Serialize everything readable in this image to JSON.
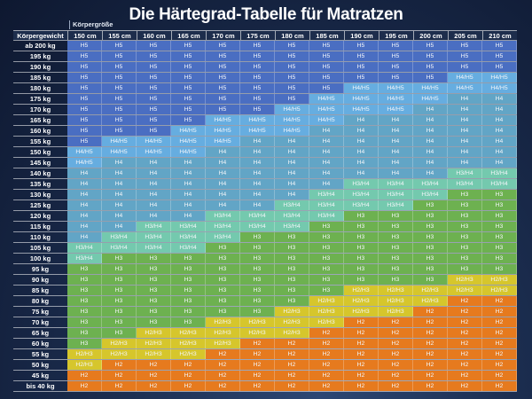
{
  "title": "Die Härtegrad-Tabelle für Matratzen",
  "chart_data": {
    "type": "table",
    "column_axis_label": "Körpergröße",
    "row_axis_label": "Körpergewicht",
    "columns": [
      "150 cm",
      "155 cm",
      "160 cm",
      "165 cm",
      "170 cm",
      "175 cm",
      "180 cm",
      "185 cm",
      "190 cm",
      "195 cm",
      "200 cm",
      "205 cm",
      "210 cm"
    ],
    "rows": [
      {
        "label": "ab 200 kg",
        "values": [
          "H5",
          "H5",
          "H5",
          "H5",
          "H5",
          "H5",
          "H5",
          "H5",
          "H5",
          "H5",
          "H5",
          "H5",
          "H5"
        ]
      },
      {
        "label": "195 kg",
        "values": [
          "H5",
          "H5",
          "H5",
          "H5",
          "H5",
          "H5",
          "H5",
          "H5",
          "H5",
          "H5",
          "H5",
          "H5",
          "H5"
        ]
      },
      {
        "label": "190 kg",
        "values": [
          "H5",
          "H5",
          "H5",
          "H5",
          "H5",
          "H5",
          "H5",
          "H5",
          "H5",
          "H5",
          "H5",
          "H5",
          "H5"
        ]
      },
      {
        "label": "185 kg",
        "values": [
          "H5",
          "H5",
          "H5",
          "H5",
          "H5",
          "H5",
          "H5",
          "H5",
          "H5",
          "H5",
          "H5",
          "H4/H5",
          "H4/H5"
        ]
      },
      {
        "label": "180 kg",
        "values": [
          "H5",
          "H5",
          "H5",
          "H5",
          "H5",
          "H5",
          "H5",
          "H5",
          "H4/H5",
          "H4/H5",
          "H4/H5",
          "H4/H5",
          "H4/H5"
        ]
      },
      {
        "label": "175 kg",
        "values": [
          "H5",
          "H5",
          "H5",
          "H5",
          "H5",
          "H5",
          "H5",
          "H4/H5",
          "H4/H5",
          "H4/H5",
          "H4/H5",
          "H4",
          "H4"
        ]
      },
      {
        "label": "170 kg",
        "values": [
          "H5",
          "H5",
          "H5",
          "H5",
          "H5",
          "H5",
          "H4/H5",
          "H4/H5",
          "H4/H5",
          "H4/H5",
          "H4",
          "H4",
          "H4"
        ]
      },
      {
        "label": "165 kg",
        "values": [
          "H5",
          "H5",
          "H5",
          "H5",
          "H4/H5",
          "H4/H5",
          "H4/H5",
          "H4/H5",
          "H4",
          "H4",
          "H4",
          "H4",
          "H4"
        ]
      },
      {
        "label": "160 kg",
        "values": [
          "H5",
          "H5",
          "H5",
          "H4/H5",
          "H4/H5",
          "H4/H5",
          "H4/H5",
          "H4",
          "H4",
          "H4",
          "H4",
          "H4",
          "H4"
        ]
      },
      {
        "label": "155 kg",
        "values": [
          "H5",
          "H4/H5",
          "H4/H5",
          "H4/H5",
          "H4/H5",
          "H4",
          "H4",
          "H4",
          "H4",
          "H4",
          "H4",
          "H4",
          "H4"
        ]
      },
      {
        "label": "150 kg",
        "values": [
          "H4/H5",
          "H4/H5",
          "H4/H5",
          "H4/H5",
          "H4",
          "H4",
          "H4",
          "H4",
          "H4",
          "H4",
          "H4",
          "H4",
          "H4"
        ]
      },
      {
        "label": "145 kg",
        "values": [
          "H4/H5",
          "H4",
          "H4",
          "H4",
          "H4",
          "H4",
          "H4",
          "H4",
          "H4",
          "H4",
          "H4",
          "H4",
          "H4"
        ]
      },
      {
        "label": "140 kg",
        "values": [
          "H4",
          "H4",
          "H4",
          "H4",
          "H4",
          "H4",
          "H4",
          "H4",
          "H4",
          "H4",
          "H4",
          "H3/H4",
          "H3/H4"
        ]
      },
      {
        "label": "135 kg",
        "values": [
          "H4",
          "H4",
          "H4",
          "H4",
          "H4",
          "H4",
          "H4",
          "H4",
          "H3/H4",
          "H3/H4",
          "H3/H4",
          "H3/H4",
          "H3/H4"
        ]
      },
      {
        "label": "130 kg",
        "values": [
          "H4",
          "H4",
          "H4",
          "H4",
          "H4",
          "H4",
          "H4",
          "H3/H4",
          "H3/H4",
          "H3/H4",
          "H3/H4",
          "H3",
          "H3"
        ]
      },
      {
        "label": "125 kg",
        "values": [
          "H4",
          "H4",
          "H4",
          "H4",
          "H4",
          "H4",
          "H3/H4",
          "H3/H4",
          "H3/H4",
          "H3/H4",
          "H3",
          "H3",
          "H3"
        ]
      },
      {
        "label": "120 kg",
        "values": [
          "H4",
          "H4",
          "H4",
          "H4",
          "H3/H4",
          "H3/H4",
          "H3/H4",
          "H3/H4",
          "H3",
          "H3",
          "H3",
          "H3",
          "H3"
        ]
      },
      {
        "label": "115 kg",
        "values": [
          "H4",
          "H4",
          "H3/H4",
          "H3/H4",
          "H3/H4",
          "H3/H4",
          "H3/H4",
          "H3",
          "H3",
          "H3",
          "H3",
          "H3",
          "H3"
        ]
      },
      {
        "label": "110 kg",
        "values": [
          "H4",
          "H3/H4",
          "H3/H4",
          "H3/H4",
          "H3/H4",
          "H3",
          "H3",
          "H3",
          "H3",
          "H3",
          "H3",
          "H3",
          "H3"
        ]
      },
      {
        "label": "105 kg",
        "values": [
          "H3/H4",
          "H3/H4",
          "H3/H4",
          "H3/H4",
          "H3",
          "H3",
          "H3",
          "H3",
          "H3",
          "H3",
          "H3",
          "H3",
          "H3"
        ]
      },
      {
        "label": "100 kg",
        "values": [
          "H3/H4",
          "H3",
          "H3",
          "H3",
          "H3",
          "H3",
          "H3",
          "H3",
          "H3",
          "H3",
          "H3",
          "H3",
          "H3"
        ]
      },
      {
        "label": "95 kg",
        "values": [
          "H3",
          "H3",
          "H3",
          "H3",
          "H3",
          "H3",
          "H3",
          "H3",
          "H3",
          "H3",
          "H3",
          "H3",
          "H3"
        ]
      },
      {
        "label": "90 kg",
        "values": [
          "H3",
          "H3",
          "H3",
          "H3",
          "H3",
          "H3",
          "H3",
          "H3",
          "H3",
          "H3",
          "H3",
          "H2/H3",
          "H2/H3"
        ]
      },
      {
        "label": "85 kg",
        "values": [
          "H3",
          "H3",
          "H3",
          "H3",
          "H3",
          "H3",
          "H3",
          "H3",
          "H2/H3",
          "H2/H3",
          "H2/H3",
          "H2/H3",
          "H2/H3"
        ]
      },
      {
        "label": "80 kg",
        "values": [
          "H3",
          "H3",
          "H3",
          "H3",
          "H3",
          "H3",
          "H3",
          "H2/H3",
          "H2/H3",
          "H2/H3",
          "H2/H3",
          "H2",
          "H2"
        ]
      },
      {
        "label": "75 kg",
        "values": [
          "H3",
          "H3",
          "H3",
          "H3",
          "H3",
          "H3",
          "H2/H3",
          "H2/H3",
          "H2/H3",
          "H2/H3",
          "H2",
          "H2",
          "H2"
        ]
      },
      {
        "label": "70 kg",
        "values": [
          "H3",
          "H3",
          "H3",
          "H3",
          "H2/H3",
          "H2/H3",
          "H2/H3",
          "H2/H3",
          "H2",
          "H2",
          "H2",
          "H2",
          "H2"
        ]
      },
      {
        "label": "65 kg",
        "values": [
          "H3",
          "H3",
          "H2/H3",
          "H2/H3",
          "H2/H3",
          "H2/H3",
          "H2/H3",
          "H2",
          "H2",
          "H2",
          "H2",
          "H2",
          "H2"
        ]
      },
      {
        "label": "60 kg",
        "values": [
          "H3",
          "H2/H3",
          "H2/H3",
          "H2/H3",
          "H2/H3",
          "H2",
          "H2",
          "H2",
          "H2",
          "H2",
          "H2",
          "H2",
          "H2"
        ]
      },
      {
        "label": "55 kg",
        "values": [
          "H2/H3",
          "H2/H3",
          "H2/H3",
          "H2/H3",
          "H2",
          "H2",
          "H2",
          "H2",
          "H2",
          "H2",
          "H2",
          "H2",
          "H2"
        ]
      },
      {
        "label": "50 kg",
        "values": [
          "H2/H3",
          "H2",
          "H2",
          "H2",
          "H2",
          "H2",
          "H2",
          "H2",
          "H2",
          "H2",
          "H2",
          "H2",
          "H2"
        ]
      },
      {
        "label": "45 kg",
        "values": [
          "H2",
          "H2",
          "H2",
          "H2",
          "H2",
          "H2",
          "H2",
          "H2",
          "H2",
          "H2",
          "H2",
          "H2",
          "H2"
        ]
      },
      {
        "label": "bis 40 kg",
        "values": [
          "H2",
          "H2",
          "H2",
          "H2",
          "H2",
          "H2",
          "H2",
          "H2",
          "H2",
          "H2",
          "H2",
          "H2",
          "H2"
        ]
      }
    ]
  },
  "colors": {
    "H5": "#4a6ec2",
    "H4/H5": "#66ade0",
    "H4": "#62a5c6",
    "H3/H4": "#74c9ae",
    "H3": "#6db150",
    "H2/H3": "#d6c62c",
    "H2": "#e67a1e",
    "label_bg": "#1d2d4c"
  }
}
